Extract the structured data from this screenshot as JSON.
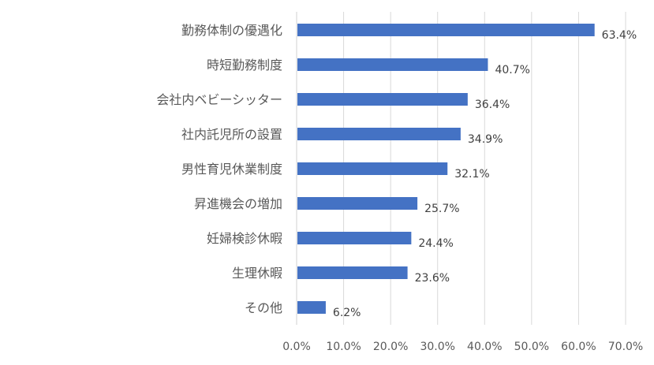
{
  "chart_data": {
    "type": "bar",
    "orientation": "horizontal",
    "categories": [
      "勤務体制の優遇化",
      "時短勤務制度",
      "会社内ベビーシッター",
      "社内託児所の設置",
      "男性育児休業制度",
      "昇進機会の増加",
      "妊婦検診休暇",
      "生理休暇",
      "その他"
    ],
    "values": [
      63.4,
      40.7,
      36.4,
      34.9,
      32.1,
      25.7,
      24.4,
      23.6,
      6.2
    ],
    "data_labels": [
      "63.4%",
      "40.7%",
      "36.4%",
      "34.9%",
      "32.1%",
      "25.7%",
      "24.4%",
      "23.6%",
      "6.2%"
    ],
    "x_ticks": [
      "0.0%",
      "10.0%",
      "20.0%",
      "30.0%",
      "40.0%",
      "50.0%",
      "60.0%",
      "70.0%"
    ],
    "xlim": [
      0,
      70
    ],
    "grid": true,
    "bar_color": "#4472C4",
    "grid_color": "#D9D9D9",
    "text_color": "#595959",
    "label_color": "#404040"
  }
}
